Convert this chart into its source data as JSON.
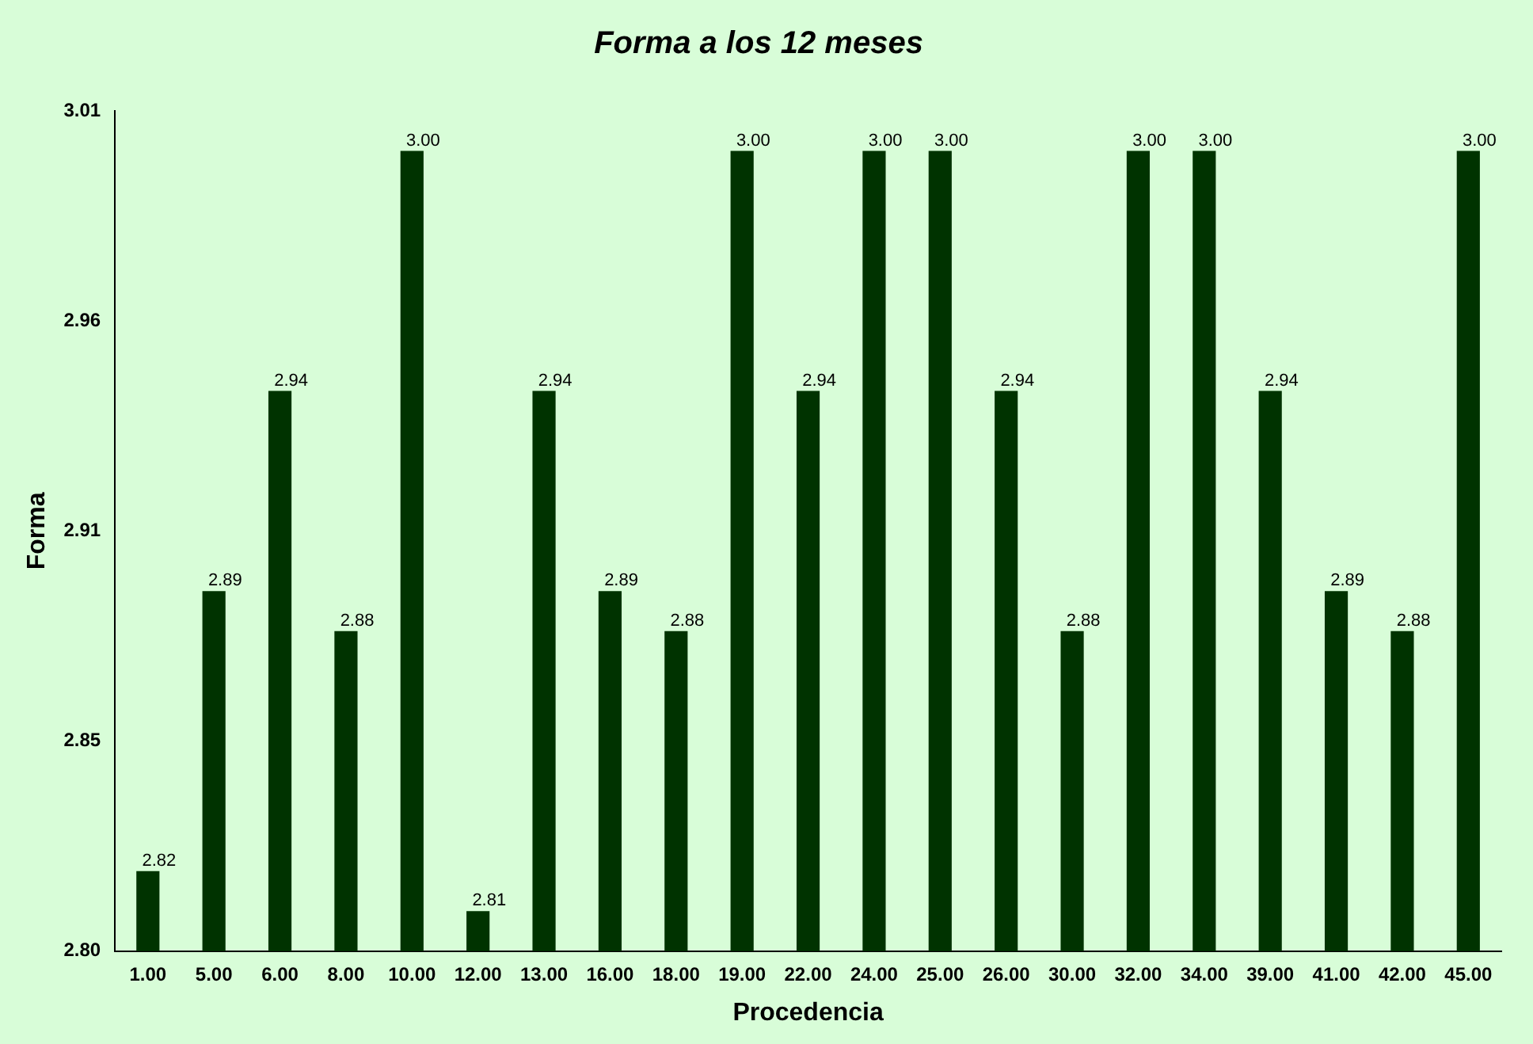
{
  "chart_data": {
    "type": "bar",
    "title": "Forma a los 12 meses",
    "xlabel": "Procedencia",
    "ylabel": "Forma",
    "categories": [
      "1.00",
      "5.00",
      "6.00",
      "8.00",
      "10.00",
      "12.00",
      "13.00",
      "16.00",
      "18.00",
      "19.00",
      "22.00",
      "24.00",
      "25.00",
      "26.00",
      "30.00",
      "32.00",
      "34.00",
      "39.00",
      "41.00",
      "42.00",
      "45.00"
    ],
    "values": [
      2.82,
      2.89,
      2.94,
      2.88,
      3.0,
      2.81,
      2.94,
      2.89,
      2.88,
      3.0,
      2.94,
      3.0,
      3.0,
      2.94,
      2.88,
      3.0,
      3.0,
      2.94,
      2.89,
      2.88,
      3.0
    ],
    "value_labels": [
      "2.82",
      "2.89",
      "2.94",
      "2.88",
      "3.00",
      "2.81",
      "2.94",
      "2.89",
      "2.88",
      "3.00",
      "2.94",
      "3.00",
      "3.00",
      "2.94",
      "2.88",
      "3.00",
      "3.00",
      "2.94",
      "2.89",
      "2.88",
      "3.00"
    ],
    "color": "#003300",
    "ylim": [
      2.8,
      3.01
    ],
    "yticks": [
      {
        "value": 2.8,
        "label": "2.80"
      },
      {
        "value": 2.8525,
        "label": "2.85"
      },
      {
        "value": 2.905,
        "label": "2.91"
      },
      {
        "value": 2.9575,
        "label": "2.96"
      },
      {
        "value": 3.01,
        "label": "3.01"
      }
    ],
    "grid": false,
    "legend": false
  }
}
